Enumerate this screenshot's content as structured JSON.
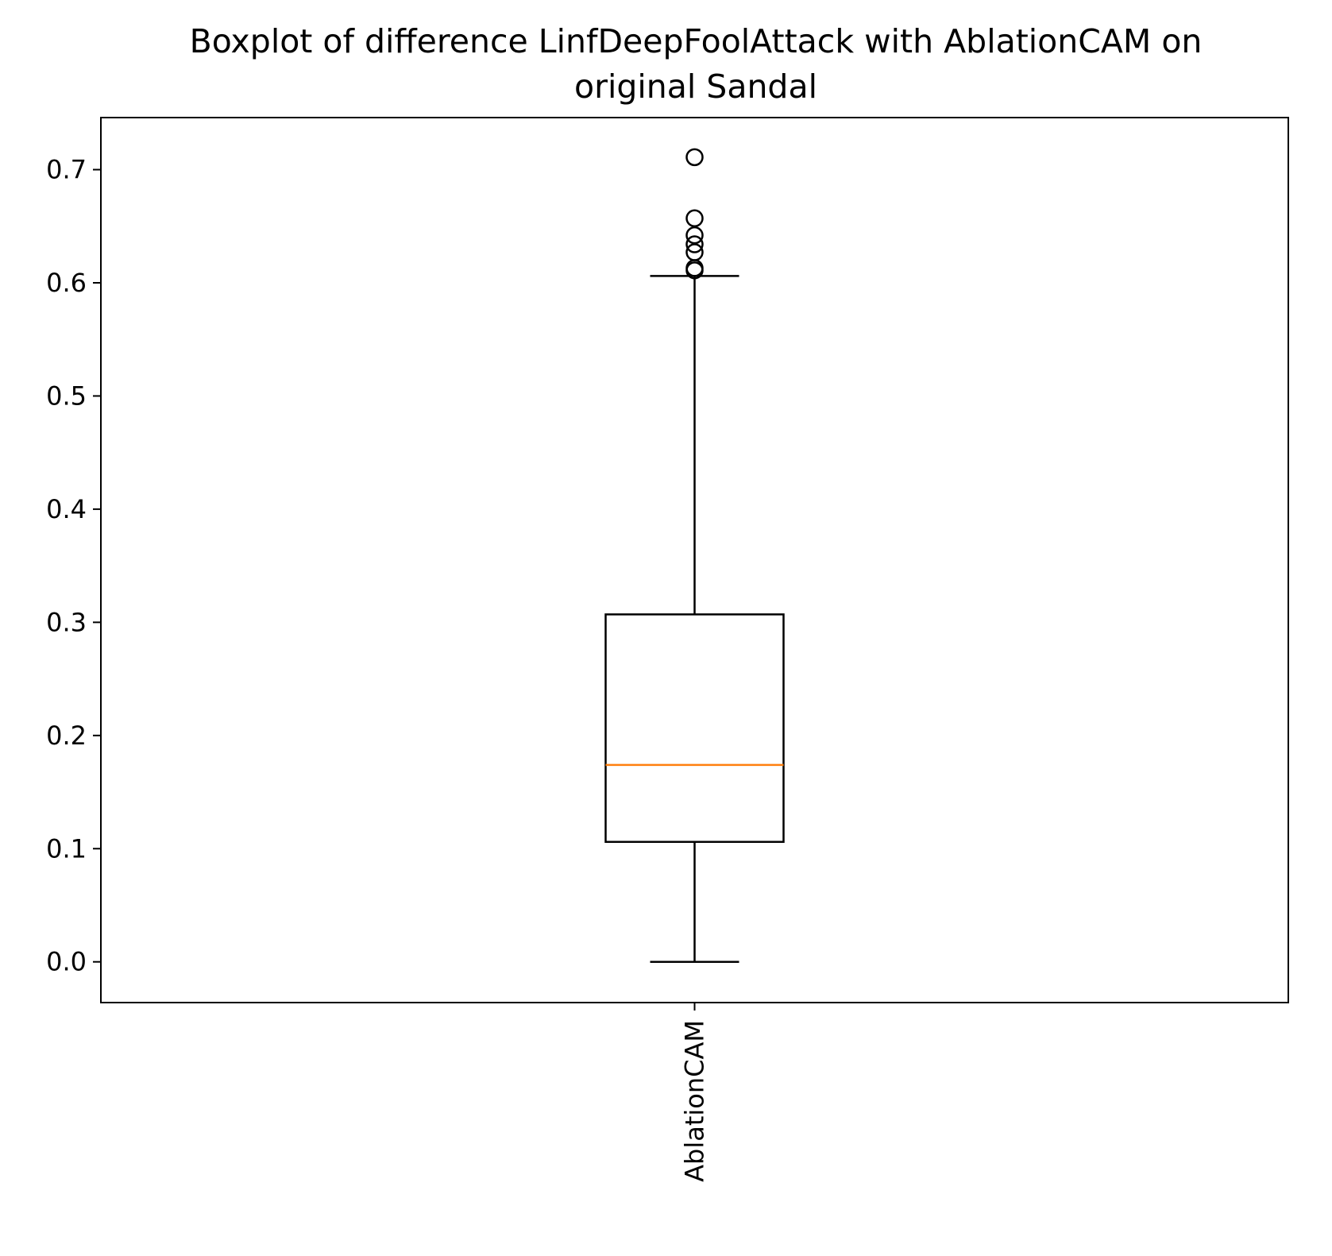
{
  "chart_data": {
    "type": "boxplot",
    "title": "Boxplot of difference LinfDeepFoolAttack with AblationCAM on\noriginal Sandal",
    "title_lines": [
      "Boxplot of difference LinfDeepFoolAttack with AblationCAM on",
      "original Sandal"
    ],
    "categories": [
      "AblationCAM"
    ],
    "boxes": [
      {
        "label": "AblationCAM",
        "whisker_low": 0.0,
        "q1": 0.106,
        "median": 0.174,
        "q3": 0.307,
        "whisker_high": 0.606,
        "outliers": [
          0.611,
          0.613,
          0.627,
          0.634,
          0.642,
          0.657,
          0.711
        ]
      }
    ],
    "ylim": [
      -0.036,
      0.746
    ],
    "yticks": [
      0.0,
      0.1,
      0.2,
      0.3,
      0.4,
      0.5,
      0.6,
      0.7
    ],
    "ytick_labels": [
      "0.0",
      "0.1",
      "0.2",
      "0.3",
      "0.4",
      "0.5",
      "0.6",
      "0.7"
    ],
    "xlabel": "",
    "ylabel": "",
    "grid": false,
    "colors": {
      "box": "#000000",
      "median": "#ff7f0e",
      "outlier": "#000000"
    }
  }
}
